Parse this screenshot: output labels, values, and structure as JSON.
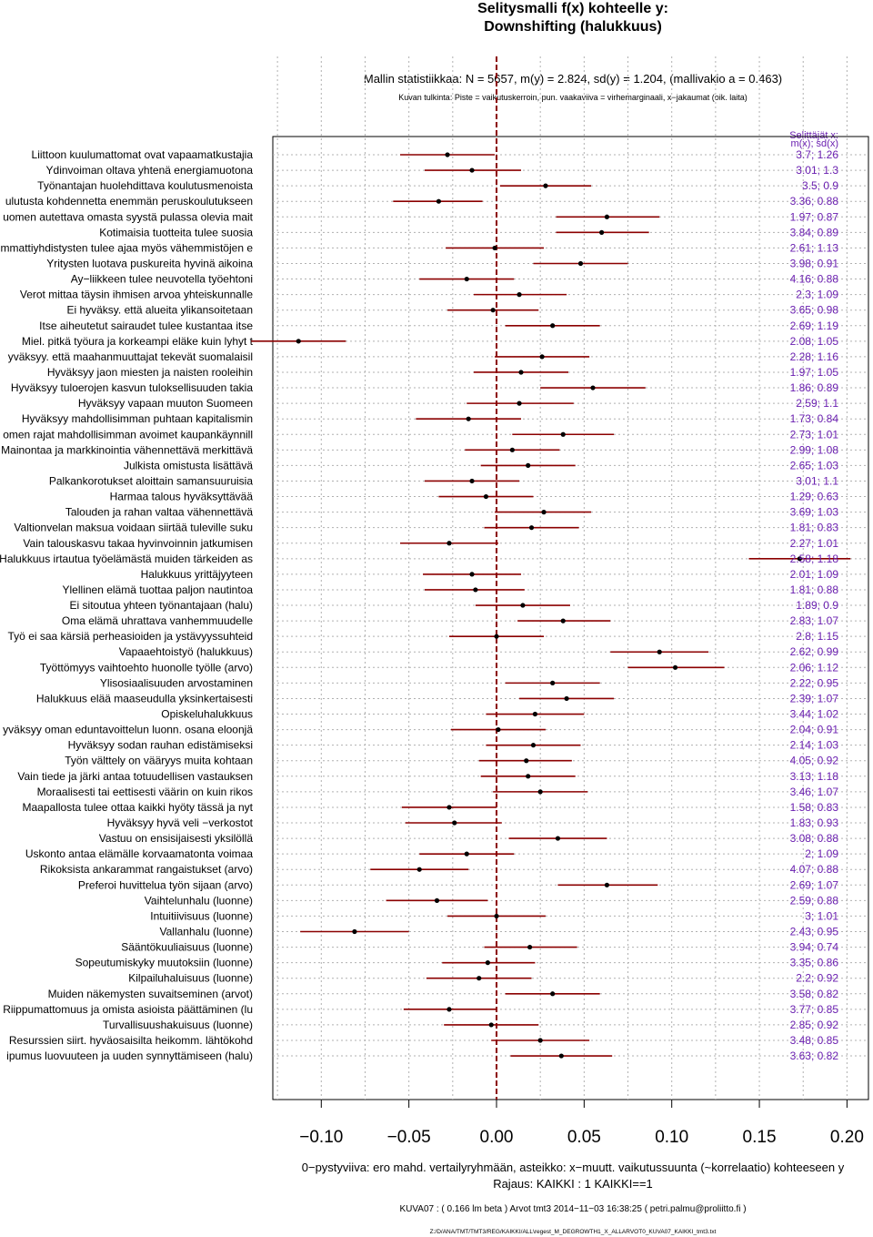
{
  "chart_data": {
    "type": "forest",
    "title_line1": "Selitysmalli f(x) kohteelle y:",
    "title_line2": "Downshifting (halukkuus)",
    "stats_line": "Mallin statistiikkaa: N = 5657, m(y) = 2.824, sd(y) = 1.204, (mallivakio a = 0.463)",
    "interpretation_line": "Kuvan tulkinta: Piste = vaikutuskerroin, pun. vaakaviiva = virhemarginaali, x−jakaumat (oik. laita)",
    "right_header_line1": "Selittäjät x:",
    "right_header_line2": "m(x); sd(x)",
    "xlim": [
      -0.12,
      0.21
    ],
    "x_ticks": [
      -0.1,
      -0.05,
      0.0,
      0.05,
      0.1,
      0.15,
      0.2
    ],
    "x_tick_labels": [
      "−0.10",
      "−0.05",
      "0.00",
      "0.05",
      "0.10",
      "0.15",
      "0.20"
    ],
    "footer_line1": "0−pystyviiva: ero mahd. vertailyryhmään, asteikko: x−muutt. vaikutussuunta (~korrelaatio) kohteeseen y",
    "footer_line2": "Rajaus: KAIKKI : 1  KAIKKI==1",
    "footer_line3": "KUVA07 : ( 0.166 lm beta )     Arvot tmt3 2014−11−03 16:38:25 ( petri.palmu@proliitto.fi )",
    "footer_line4": "Z:/D/ANA/TMT/TMT3/REG/KAIKKI/ALL\\regest_M_DEGROWTH1_X_ALLARVOT0_KUVA07_KAIKKI_tmt3.txt",
    "colors": {
      "estimate": "#000000",
      "interval": "#8b0000",
      "zero_line": "#8b0000",
      "right_labels": "#6a1fb0",
      "grid": "#b0b0b0"
    },
    "rows": [
      {
        "label": "Liittoon kuulumattomat ovat vapaamatkustajia",
        "estimate": -0.028,
        "low": -0.055,
        "high": -0.001,
        "stats": "3.7; 1.26"
      },
      {
        "label": "Ydinvoiman oltava yhtenä energiamuotona",
        "estimate": -0.014,
        "low": -0.041,
        "high": 0.014,
        "stats": "3.01; 1.3"
      },
      {
        "label": "Työnantajan huolehdittava koulutusmenoista",
        "estimate": 0.028,
        "low": 0.002,
        "high": 0.054,
        "stats": "3.5; 0.9"
      },
      {
        "label": "ulutusta kohdennetta enemmän peruskoulutukseen",
        "estimate": -0.033,
        "low": -0.059,
        "high": -0.008,
        "stats": "3.36; 0.88"
      },
      {
        "label": "uomen autettava omasta syystä pulassa olevia mait",
        "estimate": 0.063,
        "low": 0.034,
        "high": 0.093,
        "stats": "1.97; 0.87"
      },
      {
        "label": "Kotimaisia tuotteita tulee suosia",
        "estimate": 0.06,
        "low": 0.034,
        "high": 0.087,
        "stats": "3.84; 0.89"
      },
      {
        "label": "mmattiyhdistysten tulee ajaa myös vähemmistöjen e",
        "estimate": -0.001,
        "low": -0.029,
        "high": 0.027,
        "stats": "2.61; 1.13"
      },
      {
        "label": "Yritysten luotava puskureita hyvinä aikoina",
        "estimate": 0.048,
        "low": 0.021,
        "high": 0.075,
        "stats": "3.98; 0.91"
      },
      {
        "label": "Ay−liikkeen tulee neuvotella työehtoni",
        "estimate": -0.017,
        "low": -0.044,
        "high": 0.01,
        "stats": "4.16; 0.88"
      },
      {
        "label": "Verot mittaa täysin ihmisen arvoa yhteiskunnalle",
        "estimate": 0.013,
        "low": -0.013,
        "high": 0.04,
        "stats": "2.3; 1.09"
      },
      {
        "label": "Ei hyväksy. että alueita ylikansoitetaan",
        "estimate": -0.002,
        "low": -0.028,
        "high": 0.024,
        "stats": "3.65; 0.98"
      },
      {
        "label": "Itse aiheutetut sairaudet tulee kustantaa itse",
        "estimate": 0.032,
        "low": 0.005,
        "high": 0.059,
        "stats": "2.69; 1.19"
      },
      {
        "label": "Miel. pitkä työura ja korkeampi eläke kuin lyhyt t",
        "estimate": -0.113,
        "low": -0.14,
        "high": -0.086,
        "stats": "2.08; 1.05"
      },
      {
        "label": "yväksyy. että maahanmuuttajat tekevät suomalaisil",
        "estimate": 0.026,
        "low": -0.001,
        "high": 0.053,
        "stats": "2.28; 1.16"
      },
      {
        "label": "Hyväksyy jaon miesten ja naisten rooleihin",
        "estimate": 0.014,
        "low": -0.013,
        "high": 0.041,
        "stats": "1.97; 1.05"
      },
      {
        "label": "Hyväksyy tuloerojen kasvun tuloksellisuuden takia",
        "estimate": 0.055,
        "low": 0.025,
        "high": 0.085,
        "stats": "1.86; 0.89"
      },
      {
        "label": "Hyväksyy vapaan muuton Suomeen",
        "estimate": 0.013,
        "low": -0.017,
        "high": 0.044,
        "stats": "2.59; 1.1"
      },
      {
        "label": "Hyväksyy mahdollisimman puhtaan kapitalismin",
        "estimate": -0.016,
        "low": -0.046,
        "high": 0.014,
        "stats": "1.73; 0.84"
      },
      {
        "label": "omen rajat mahdollisimman avoimet kaupankäynnill",
        "estimate": 0.038,
        "low": 0.009,
        "high": 0.067,
        "stats": "2.73; 1.01"
      },
      {
        "label": "Mainontaa ja markkinointia vähennettävä merkittävä",
        "estimate": 0.009,
        "low": -0.018,
        "high": 0.036,
        "stats": "2.99; 1.08"
      },
      {
        "label": "Julkista omistusta lisättävä",
        "estimate": 0.018,
        "low": -0.009,
        "high": 0.045,
        "stats": "2.65; 1.03"
      },
      {
        "label": "Palkankorotukset aloittain samansuuruisia",
        "estimate": -0.014,
        "low": -0.041,
        "high": 0.013,
        "stats": "3.01; 1.1"
      },
      {
        "label": "Harmaa talous hyväksyttävää",
        "estimate": -0.006,
        "low": -0.033,
        "high": 0.021,
        "stats": "1.29; 0.63"
      },
      {
        "label": "Talouden ja rahan valtaa vähennettävä",
        "estimate": 0.027,
        "low": -0.001,
        "high": 0.054,
        "stats": "3.69; 1.03"
      },
      {
        "label": "Valtionvelan maksua voidaan siirtää tuleville suku",
        "estimate": 0.02,
        "low": -0.007,
        "high": 0.047,
        "stats": "1.81; 0.83"
      },
      {
        "label": "Vain talouskasvu takaa hyvinvoinnin jatkumisen",
        "estimate": -0.027,
        "low": -0.055,
        "high": 0.001,
        "stats": "2.27; 1.01"
      },
      {
        "label": "Halukkuus irtautua työelämästä muiden tärkeiden as",
        "estimate": 0.173,
        "low": 0.144,
        "high": 0.202,
        "stats": "2.58; 1.18"
      },
      {
        "label": "Halukkuus yrittäjyyteen",
        "estimate": -0.014,
        "low": -0.042,
        "high": 0.014,
        "stats": "2.01; 1.09"
      },
      {
        "label": "Ylellinen elämä tuottaa paljon nautintoa",
        "estimate": -0.012,
        "low": -0.041,
        "high": 0.016,
        "stats": "1.81; 0.88"
      },
      {
        "label": "Ei sitoutua yhteen työnantajaan (halu)",
        "estimate": 0.015,
        "low": -0.012,
        "high": 0.042,
        "stats": "1.89; 0.9"
      },
      {
        "label": "Oma elämä uhrattava vanhemmuudelle",
        "estimate": 0.038,
        "low": 0.012,
        "high": 0.065,
        "stats": "2.83; 1.07"
      },
      {
        "label": "Työ ei saa kärsiä perheasioiden ja ystävyyssuhteid",
        "estimate": 0.0,
        "low": -0.027,
        "high": 0.027,
        "stats": "2.8; 1.15"
      },
      {
        "label": "Vapaaehtoistyö (halukkuus)",
        "estimate": 0.093,
        "low": 0.065,
        "high": 0.121,
        "stats": "2.62; 0.99"
      },
      {
        "label": "Työttömyys vaihtoehto huonolle työlle (arvo)",
        "estimate": 0.102,
        "low": 0.075,
        "high": 0.13,
        "stats": "2.06; 1.12"
      },
      {
        "label": "Ylisosiaalisuuden arvostaminen",
        "estimate": 0.032,
        "low": 0.005,
        "high": 0.059,
        "stats": "2.22; 0.95"
      },
      {
        "label": "Halukkuus elää maaseudulla yksinkertaisesti",
        "estimate": 0.04,
        "low": 0.013,
        "high": 0.067,
        "stats": "2.39; 1.07"
      },
      {
        "label": "Opiskeluhalukkuus",
        "estimate": 0.022,
        "low": -0.006,
        "high": 0.05,
        "stats": "3.44; 1.02"
      },
      {
        "label": "yväksyy oman eduntavoittelun luonn. osana eloonjä",
        "estimate": 0.001,
        "low": -0.026,
        "high": 0.028,
        "stats": "2.04; 0.91"
      },
      {
        "label": "Hyväksyy sodan rauhan edistämiseksi",
        "estimate": 0.021,
        "low": -0.006,
        "high": 0.048,
        "stats": "2.14; 1.03"
      },
      {
        "label": "Työn välttely on vääryys muita kohtaan",
        "estimate": 0.017,
        "low": -0.01,
        "high": 0.043,
        "stats": "4.05; 0.92"
      },
      {
        "label": "Vain tiede ja järki antaa totuudellisen vastauksen",
        "estimate": 0.018,
        "low": -0.009,
        "high": 0.045,
        "stats": "3.13; 1.18"
      },
      {
        "label": "Moraalisesti tai eettisesti väärin on kuin rikos",
        "estimate": 0.025,
        "low": -0.002,
        "high": 0.052,
        "stats": "3.46; 1.07"
      },
      {
        "label": "Maapallosta tulee ottaa kaikki hyöty tässä ja nyt",
        "estimate": -0.027,
        "low": -0.054,
        "high": 0.0,
        "stats": "1.58; 0.83"
      },
      {
        "label": "Hyväksyy hyvä veli −verkostot",
        "estimate": -0.024,
        "low": -0.052,
        "high": 0.003,
        "stats": "1.83; 0.93"
      },
      {
        "label": "Vastuu on ensisijaisesti yksilöllä",
        "estimate": 0.035,
        "low": 0.007,
        "high": 0.063,
        "stats": "3.08; 0.88"
      },
      {
        "label": "Uskonto antaa elämälle korvaamatonta voimaa",
        "estimate": -0.017,
        "low": -0.044,
        "high": 0.01,
        "stats": "2; 1.09"
      },
      {
        "label": "Rikoksista ankarammat rangaistukset (arvo)",
        "estimate": -0.044,
        "low": -0.072,
        "high": -0.016,
        "stats": "4.07; 0.88"
      },
      {
        "label": "Preferoi huvittelua työn sijaan (arvo)",
        "estimate": 0.063,
        "low": 0.035,
        "high": 0.092,
        "stats": "2.69; 1.07"
      },
      {
        "label": "Vaihtelunhalu (luonne)",
        "estimate": -0.034,
        "low": -0.063,
        "high": -0.005,
        "stats": "2.59; 0.88"
      },
      {
        "label": "Intuitiivisuus (luonne)",
        "estimate": 0.0,
        "low": -0.028,
        "high": 0.028,
        "stats": "3; 1.01"
      },
      {
        "label": "Vallanhalu (luonne)",
        "estimate": -0.081,
        "low": -0.112,
        "high": -0.05,
        "stats": "2.43; 0.95"
      },
      {
        "label": "Sääntökuuliaisuus (luonne)",
        "estimate": 0.019,
        "low": -0.007,
        "high": 0.046,
        "stats": "3.94; 0.74"
      },
      {
        "label": "Sopeutumiskyky muutoksiin (luonne)",
        "estimate": -0.005,
        "low": -0.031,
        "high": 0.022,
        "stats": "3.35; 0.86"
      },
      {
        "label": "Kilpailuhaluisuus (luonne)",
        "estimate": -0.01,
        "low": -0.04,
        "high": 0.02,
        "stats": "2.2; 0.92"
      },
      {
        "label": "Muiden näkemysten suvaitseminen (arvot)",
        "estimate": 0.032,
        "low": 0.005,
        "high": 0.059,
        "stats": "3.58; 0.82"
      },
      {
        "label": "Riippumattomuus ja omista asioista päättäminen (lu",
        "estimate": -0.027,
        "low": -0.053,
        "high": 0.0,
        "stats": "3.77; 0.85"
      },
      {
        "label": "Turvallisuushakuisuus (luonne)",
        "estimate": -0.003,
        "low": -0.03,
        "high": 0.024,
        "stats": "2.85; 0.92"
      },
      {
        "label": "Resurssien siirt. hyväosaisilta heikomm. lähtökohd",
        "estimate": 0.025,
        "low": -0.003,
        "high": 0.053,
        "stats": "3.48; 0.85"
      },
      {
        "label": "ipumus luovuuteen ja uuden synnyttämiseen (halu)",
        "estimate": 0.037,
        "low": 0.008,
        "high": 0.066,
        "stats": "3.63; 0.82"
      }
    ]
  }
}
